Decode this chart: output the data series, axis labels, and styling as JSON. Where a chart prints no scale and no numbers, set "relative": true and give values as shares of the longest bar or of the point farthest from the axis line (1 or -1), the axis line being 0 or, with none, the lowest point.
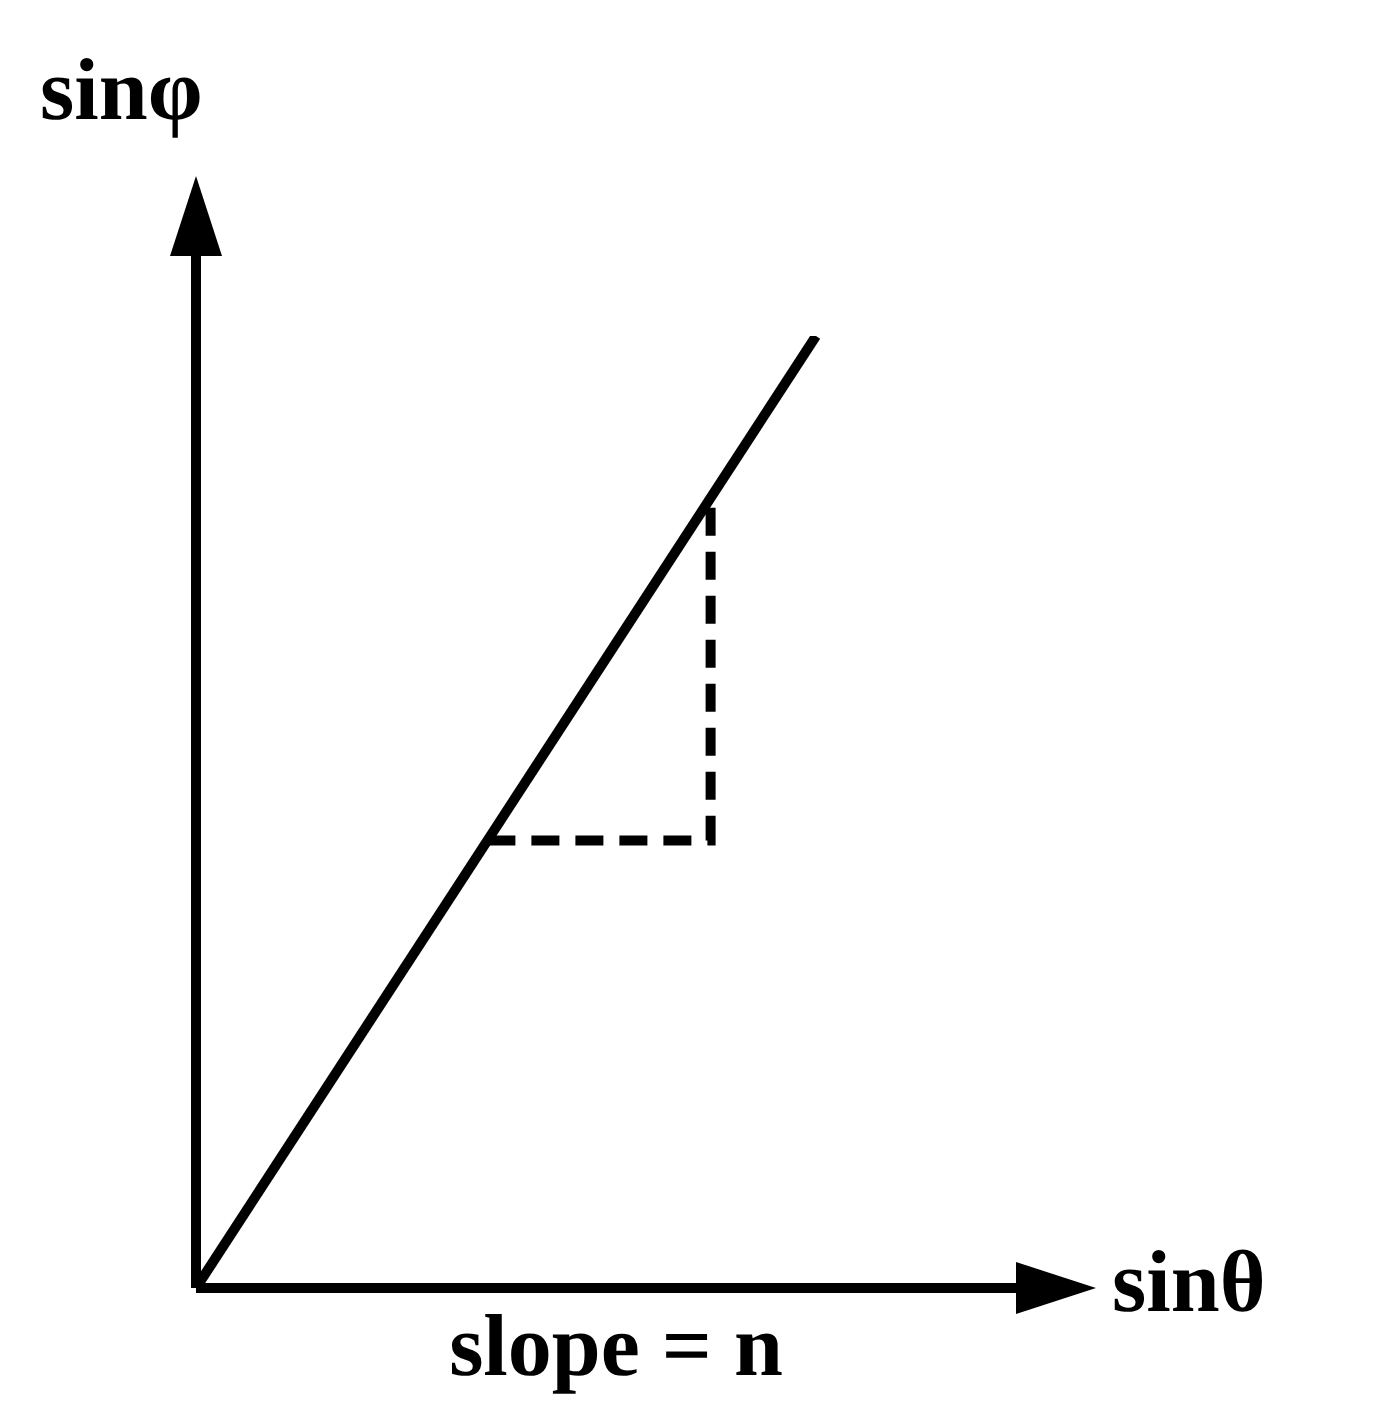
{
  "chart_data": {
    "type": "line",
    "relative": true,
    "xlabel": "sinθ",
    "ylabel": "sinφ",
    "annotations": [
      "slope = n"
    ],
    "categories": [
      null,
      null
    ],
    "series": [
      {
        "color": "#000000",
        "values": [
          0,
          1
        ]
      }
    ],
    "marker": "none",
    "line_style": "solid"
  }
}
